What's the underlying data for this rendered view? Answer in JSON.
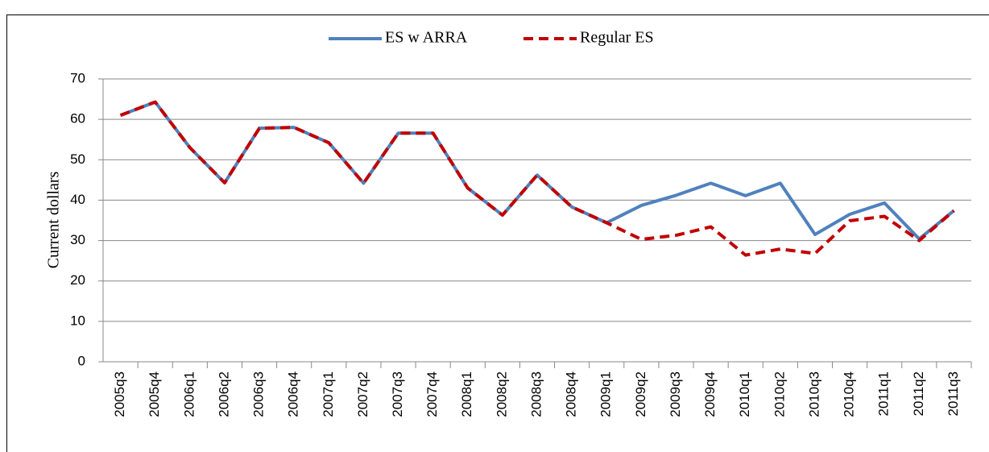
{
  "chart_data": {
    "type": "line",
    "y_label": "Current dollars",
    "categories": [
      "2005q3",
      "2005q4",
      "2006q1",
      "2006q2",
      "2006q3",
      "2006q4",
      "2007q1",
      "2007q2",
      "2007q3",
      "2007q4",
      "2008q1",
      "2008q2",
      "2008q3",
      "2008q4",
      "2009q1",
      "2009q2",
      "2009q3",
      "2009q4",
      "2010q1",
      "2010q2",
      "2010q3",
      "2010q4",
      "2011q1",
      "2011q2",
      "2011q3"
    ],
    "series": [
      {
        "name": "ES w ARRA",
        "color": "#4f81bd",
        "dash": "solid",
        "values": [
          61,
          64.3,
          53,
          44.3,
          57.8,
          58,
          54.2,
          44.2,
          56.6,
          56.6,
          43,
          36.3,
          46.2,
          38.3,
          34.4,
          38.7,
          41.2,
          44.2,
          41.1,
          44.2,
          31.5,
          36.5,
          39.3,
          30.4,
          37.4
        ]
      },
      {
        "name": "Regular ES",
        "color": "#c00000",
        "dash": "dashed",
        "values": [
          61,
          64.3,
          53,
          44.3,
          57.8,
          58,
          54.2,
          44.2,
          56.6,
          56.6,
          43,
          36.3,
          46.2,
          38.3,
          34.4,
          30.3,
          31.3,
          33.4,
          26.4,
          27.9,
          26.8,
          34.9,
          36,
          30,
          37.4
        ]
      }
    ],
    "ylim": [
      0,
      70
    ],
    "yticks": [
      0,
      10,
      20,
      30,
      40,
      50,
      60,
      70
    ],
    "grid": true,
    "legend": "top"
  }
}
